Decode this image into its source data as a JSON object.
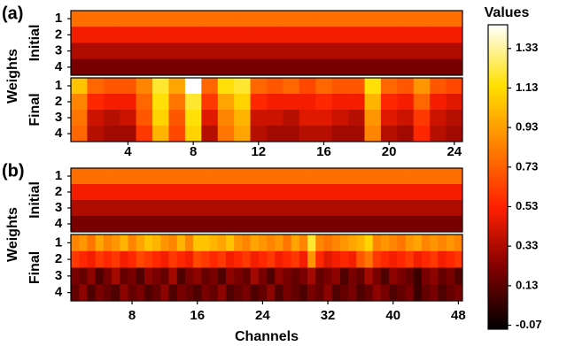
{
  "chart_data": [
    {
      "type": "heatmap",
      "label": "(a)",
      "ylabel": "Weights",
      "xlim": [
        0.5,
        24.5
      ],
      "xticks": [
        4,
        8,
        12,
        16,
        20,
        24
      ],
      "groups": [
        {
          "name": "Initial",
          "rows": [
            "1",
            "2",
            "3",
            "4"
          ],
          "values": [
            [
              0.78,
              0.78,
              0.78,
              0.78,
              0.78,
              0.78,
              0.78,
              0.78,
              0.78,
              0.78,
              0.78,
              0.78,
              0.78,
              0.78,
              0.78,
              0.78,
              0.78,
              0.78,
              0.78,
              0.78,
              0.78,
              0.78,
              0.78,
              0.78
            ],
            [
              0.5,
              0.5,
              0.5,
              0.5,
              0.5,
              0.5,
              0.5,
              0.5,
              0.5,
              0.5,
              0.5,
              0.5,
              0.5,
              0.5,
              0.5,
              0.5,
              0.5,
              0.5,
              0.5,
              0.5,
              0.5,
              0.5,
              0.5,
              0.5
            ],
            [
              0.33,
              0.33,
              0.33,
              0.33,
              0.33,
              0.33,
              0.33,
              0.33,
              0.33,
              0.33,
              0.33,
              0.33,
              0.33,
              0.33,
              0.33,
              0.33,
              0.33,
              0.33,
              0.33,
              0.33,
              0.33,
              0.33,
              0.33,
              0.33
            ],
            [
              0.2,
              0.2,
              0.2,
              0.2,
              0.2,
              0.2,
              0.2,
              0.2,
              0.2,
              0.2,
              0.2,
              0.2,
              0.2,
              0.2,
              0.2,
              0.2,
              0.2,
              0.2,
              0.2,
              0.2,
              0.2,
              0.2,
              0.2,
              0.2
            ]
          ]
        },
        {
          "name": "Final",
          "rows": [
            "1",
            "2",
            "3",
            "4"
          ],
          "values": [
            [
              1.05,
              0.75,
              0.7,
              0.7,
              0.85,
              1.2,
              0.95,
              1.45,
              0.75,
              1.15,
              1.2,
              0.75,
              0.7,
              0.75,
              0.65,
              0.75,
              0.7,
              0.7,
              1.15,
              0.75,
              0.7,
              0.9,
              0.7,
              0.65
            ],
            [
              0.85,
              0.55,
              0.5,
              0.5,
              0.75,
              1.15,
              0.8,
              1.2,
              0.6,
              0.95,
              1.1,
              0.55,
              0.5,
              0.5,
              0.5,
              0.55,
              0.5,
              0.5,
              1.0,
              0.55,
              0.5,
              0.75,
              0.5,
              0.45
            ],
            [
              0.8,
              0.4,
              0.35,
              0.4,
              0.7,
              1.1,
              0.7,
              1.15,
              0.45,
              0.85,
              1.0,
              0.4,
              0.4,
              0.35,
              0.45,
              0.45,
              0.4,
              0.35,
              0.9,
              0.45,
              0.4,
              0.6,
              0.4,
              0.35
            ],
            [
              0.75,
              0.35,
              0.3,
              0.3,
              0.6,
              1.0,
              0.65,
              1.1,
              0.35,
              0.8,
              0.95,
              0.35,
              0.3,
              0.3,
              0.35,
              0.35,
              0.3,
              0.3,
              0.85,
              0.35,
              0.3,
              0.55,
              0.35,
              0.3
            ]
          ]
        }
      ]
    },
    {
      "type": "heatmap",
      "label": "(b)",
      "ylabel": "Weights",
      "xlabel": "Channels",
      "xlim": [
        0.5,
        48.5
      ],
      "xticks": [
        8,
        16,
        24,
        32,
        40,
        48
      ],
      "groups": [
        {
          "name": "Initial",
          "rows": [
            "1",
            "2",
            "3",
            "4"
          ],
          "values": [
            [
              0.78,
              0.78,
              0.78,
              0.78,
              0.78,
              0.78,
              0.78,
              0.78,
              0.78,
              0.78,
              0.78,
              0.78,
              0.78,
              0.78,
              0.78,
              0.78,
              0.78,
              0.78,
              0.78,
              0.78,
              0.78,
              0.78,
              0.78,
              0.78,
              0.78,
              0.78,
              0.78,
              0.78,
              0.78,
              0.78,
              0.78,
              0.78,
              0.78,
              0.78,
              0.78,
              0.78,
              0.78,
              0.78,
              0.78,
              0.78,
              0.78,
              0.78,
              0.78,
              0.78,
              0.78,
              0.78,
              0.78,
              0.78
            ],
            [
              0.5,
              0.5,
              0.5,
              0.5,
              0.5,
              0.5,
              0.5,
              0.5,
              0.5,
              0.5,
              0.5,
              0.5,
              0.5,
              0.5,
              0.5,
              0.5,
              0.5,
              0.5,
              0.5,
              0.5,
              0.5,
              0.5,
              0.5,
              0.5,
              0.5,
              0.5,
              0.5,
              0.5,
              0.5,
              0.5,
              0.5,
              0.5,
              0.5,
              0.5,
              0.5,
              0.5,
              0.5,
              0.5,
              0.5,
              0.5,
              0.5,
              0.5,
              0.5,
              0.5,
              0.5,
              0.5,
              0.5,
              0.5
            ],
            [
              0.33,
              0.33,
              0.33,
              0.33,
              0.33,
              0.33,
              0.33,
              0.33,
              0.33,
              0.33,
              0.33,
              0.33,
              0.33,
              0.33,
              0.33,
              0.33,
              0.33,
              0.33,
              0.33,
              0.33,
              0.33,
              0.33,
              0.33,
              0.33,
              0.33,
              0.33,
              0.33,
              0.33,
              0.33,
              0.33,
              0.33,
              0.33,
              0.33,
              0.33,
              0.33,
              0.33,
              0.33,
              0.33,
              0.33,
              0.33,
              0.33,
              0.33,
              0.33,
              0.33,
              0.33,
              0.33,
              0.33,
              0.33
            ],
            [
              0.2,
              0.2,
              0.2,
              0.2,
              0.2,
              0.2,
              0.2,
              0.2,
              0.2,
              0.2,
              0.2,
              0.2,
              0.2,
              0.2,
              0.2,
              0.2,
              0.2,
              0.2,
              0.2,
              0.2,
              0.2,
              0.2,
              0.2,
              0.2,
              0.2,
              0.2,
              0.2,
              0.2,
              0.2,
              0.2,
              0.2,
              0.2,
              0.2,
              0.2,
              0.2,
              0.2,
              0.2,
              0.2,
              0.2,
              0.2,
              0.2,
              0.2,
              0.2,
              0.2,
              0.2,
              0.2,
              0.2,
              0.2
            ]
          ]
        },
        {
          "name": "Final",
          "rows": [
            "1",
            "2",
            "3",
            "4"
          ],
          "values": [
            [
              0.85,
              0.9,
              0.8,
              0.95,
              0.85,
              0.9,
              1.0,
              0.85,
              0.95,
              1.05,
              1.0,
              0.9,
              0.85,
              1.0,
              0.85,
              1.05,
              1.05,
              1.0,
              0.95,
              1.05,
              0.9,
              0.85,
              0.95,
              0.9,
              0.85,
              0.9,
              0.8,
              0.95,
              0.85,
              1.2,
              0.85,
              0.8,
              0.85,
              0.9,
              0.95,
              1.0,
              1.1,
              0.85,
              0.9,
              0.85,
              0.8,
              0.9,
              0.95,
              0.85,
              0.9,
              0.85,
              0.9,
              0.85
            ],
            [
              0.6,
              0.55,
              0.5,
              0.6,
              0.55,
              0.6,
              0.5,
              0.55,
              0.65,
              0.6,
              0.55,
              0.5,
              0.6,
              0.55,
              0.5,
              0.65,
              0.6,
              0.55,
              0.6,
              0.5,
              0.55,
              0.6,
              0.5,
              0.55,
              0.6,
              0.5,
              0.55,
              0.6,
              0.5,
              0.9,
              0.55,
              0.45,
              0.5,
              0.55,
              0.5,
              0.7,
              0.8,
              0.6,
              0.55,
              0.5,
              0.55,
              0.6,
              0.5,
              0.55,
              0.6,
              0.5,
              0.55,
              0.6
            ],
            [
              0.2,
              0.15,
              0.25,
              0.1,
              0.2,
              0.3,
              0.15,
              0.2,
              0.1,
              0.25,
              0.2,
              0.15,
              0.3,
              0.1,
              0.2,
              0.25,
              0.15,
              0.2,
              0.1,
              0.25,
              0.2,
              0.15,
              0.3,
              0.2,
              0.1,
              0.25,
              0.2,
              0.15,
              0.2,
              0.3,
              0.15,
              0.2,
              0.25,
              0.1,
              0.2,
              0.15,
              0.3,
              0.2,
              0.1,
              0.25,
              0.2,
              0.15,
              0.05,
              0.2,
              0.25,
              0.15,
              0.2,
              0.1
            ],
            [
              0.15,
              0.25,
              0.1,
              0.2,
              0.15,
              0.1,
              0.25,
              0.15,
              0.2,
              0.1,
              0.15,
              0.25,
              0.1,
              0.2,
              0.15,
              0.1,
              0.2,
              0.15,
              0.25,
              0.1,
              0.15,
              0.2,
              0.1,
              0.15,
              0.25,
              0.1,
              0.2,
              0.15,
              0.1,
              0.2,
              0.15,
              0.25,
              0.1,
              0.15,
              0.2,
              0.1,
              0.15,
              0.25,
              0.2,
              0.1,
              0.15,
              0.2,
              0.05,
              0.15,
              0.2,
              0.1,
              0.15,
              0.2
            ]
          ]
        }
      ]
    }
  ],
  "colorbar": {
    "title": "Values",
    "lim": [
      -0.09,
      1.45
    ],
    "ticks": [
      -0.07,
      0.13,
      0.33,
      0.53,
      0.73,
      0.93,
      1.13,
      1.33
    ],
    "colormap": [
      "#000000",
      "#800000",
      "#ff2000",
      "#ff8000",
      "#ffe000",
      "#ffffff"
    ]
  }
}
